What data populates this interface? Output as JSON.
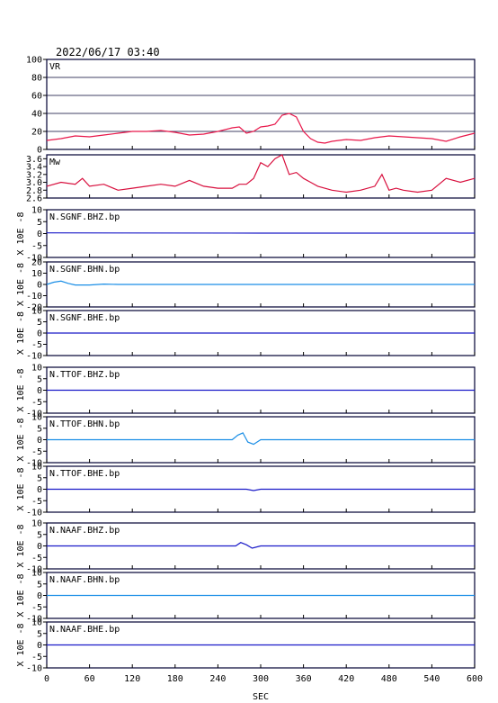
{
  "header": {
    "timestamp": "2022/06/17  03:40"
  },
  "colors": {
    "vr": "#e8174a",
    "mw": "#d8103e",
    "dark": "#1a1ac8",
    "light": "#1a8ee6",
    "frame": "#000033"
  },
  "chart_data": {
    "type": "line",
    "xlabel": "SEC",
    "xlim": [
      0,
      600
    ],
    "xticks": [
      "0",
      "60",
      "120",
      "180",
      "240",
      "300",
      "360",
      "420",
      "480",
      "540",
      "600"
    ],
    "panels": [
      {
        "key": "vr",
        "label": "VR",
        "ylabel": "",
        "ylim": [
          0,
          100
        ],
        "yticks": [
          "0",
          "20",
          "40",
          "60",
          "80",
          "100"
        ],
        "grid": true,
        "color": "vr",
        "x": [
          0,
          20,
          40,
          60,
          80,
          100,
          120,
          140,
          160,
          180,
          200,
          220,
          240,
          260,
          270,
          280,
          290,
          300,
          310,
          320,
          330,
          340,
          350,
          360,
          370,
          380,
          390,
          400,
          420,
          440,
          460,
          480,
          500,
          520,
          540,
          560,
          580,
          600
        ],
        "y": [
          10,
          12,
          15,
          14,
          16,
          18,
          20,
          20,
          21,
          19,
          16,
          17,
          20,
          24,
          25,
          18,
          20,
          25,
          26,
          28,
          38,
          40,
          36,
          20,
          12,
          8,
          7,
          9,
          11,
          10,
          13,
          15,
          14,
          13,
          12,
          9,
          14,
          18
        ]
      },
      {
        "key": "mw",
        "label": "Mw",
        "ylabel": "",
        "ylim": [
          2.6,
          3.7
        ],
        "yticks": [
          "2.6",
          "2.8",
          "3.0",
          "3.2",
          "3.4",
          "3.6"
        ],
        "grid": false,
        "color": "mw",
        "x": [
          0,
          20,
          40,
          50,
          60,
          80,
          100,
          120,
          140,
          160,
          180,
          200,
          220,
          240,
          260,
          270,
          280,
          290,
          300,
          310,
          320,
          330,
          340,
          350,
          360,
          370,
          380,
          400,
          420,
          440,
          460,
          470,
          480,
          490,
          500,
          520,
          540,
          560,
          580,
          600
        ],
        "y": [
          2.9,
          3.0,
          2.95,
          3.1,
          2.9,
          2.95,
          2.8,
          2.85,
          2.9,
          2.95,
          2.9,
          3.05,
          2.9,
          2.85,
          2.85,
          2.95,
          2.95,
          3.1,
          3.5,
          3.4,
          3.6,
          3.7,
          3.2,
          3.25,
          3.1,
          3.0,
          2.9,
          2.8,
          2.75,
          2.8,
          2.9,
          3.2,
          2.8,
          2.85,
          2.8,
          2.75,
          2.8,
          3.1,
          3.0,
          3.1
        ]
      },
      {
        "key": "sgnf_bhz",
        "label": "N.SGNF.BHZ.bp",
        "ylabel": "X 10E -8",
        "ylim": [
          -10,
          10
        ],
        "yticks": [
          "-10",
          "-5",
          "0",
          "5",
          "10"
        ],
        "grid": false,
        "color": "dark",
        "x": [
          0,
          300,
          600
        ],
        "y": [
          0.3,
          0.2,
          0.2
        ]
      },
      {
        "key": "sgnf_bhn",
        "label": "N.SGNF.BHN.bp",
        "ylabel": "X 10E -8",
        "ylim": [
          -20,
          20
        ],
        "yticks": [
          "-20",
          "-10",
          "0",
          "10",
          "20"
        ],
        "grid": false,
        "color": "light",
        "x": [
          0,
          10,
          20,
          30,
          40,
          60,
          80,
          100,
          600
        ],
        "y": [
          0,
          2,
          3,
          1,
          -0.5,
          -0.5,
          0.3,
          0,
          0
        ]
      },
      {
        "key": "sgnf_bhe",
        "label": "N.SGNF.BHE.bp",
        "ylabel": "X 10E -8",
        "ylim": [
          -10,
          10
        ],
        "yticks": [
          "-10",
          "-5",
          "0",
          "5",
          "10"
        ],
        "grid": false,
        "color": "dark",
        "x": [
          0,
          300,
          600
        ],
        "y": [
          0,
          0,
          0
        ]
      },
      {
        "key": "ttof_bhz",
        "label": "N.TTOF.BHZ.bp",
        "ylabel": "X 10E -8",
        "ylim": [
          -10,
          10
        ],
        "yticks": [
          "-10",
          "-5",
          "0",
          "5",
          "10"
        ],
        "grid": false,
        "color": "dark",
        "x": [
          0,
          300,
          600
        ],
        "y": [
          0,
          0,
          0
        ]
      },
      {
        "key": "ttof_bhn",
        "label": "N.TTOF.BHN.bp",
        "ylabel": "X 10E -8",
        "ylim": [
          -10,
          10
        ],
        "yticks": [
          "-10",
          "-5",
          "0",
          "5",
          "10"
        ],
        "grid": false,
        "color": "light",
        "x": [
          0,
          260,
          268,
          275,
          282,
          290,
          300,
          600
        ],
        "y": [
          0,
          0,
          2,
          3,
          -1,
          -2,
          0,
          0
        ]
      },
      {
        "key": "ttof_bhe",
        "label": "N.TTOF.BHE.bp",
        "ylabel": "X 10E -8",
        "ylim": [
          -10,
          10
        ],
        "yticks": [
          "-10",
          "-5",
          "0",
          "5",
          "10"
        ],
        "grid": false,
        "color": "dark",
        "x": [
          0,
          280,
          290,
          300,
          600
        ],
        "y": [
          0,
          0,
          -0.6,
          0,
          0
        ]
      },
      {
        "key": "naaf_bhz",
        "label": "N.NAAF.BHZ.bp",
        "ylabel": "X 10E -8",
        "ylim": [
          -10,
          10
        ],
        "yticks": [
          "-10",
          "-5",
          "0",
          "5",
          "10"
        ],
        "grid": false,
        "color": "dark",
        "x": [
          0,
          265,
          272,
          280,
          288,
          300,
          600
        ],
        "y": [
          0,
          0,
          1.5,
          0.5,
          -1,
          0,
          0
        ]
      },
      {
        "key": "naaf_bhn",
        "label": "N.NAAF.BHN.bp",
        "ylabel": "X 10E -8",
        "ylim": [
          -10,
          10
        ],
        "yticks": [
          "-10",
          "-5",
          "0",
          "5",
          "10"
        ],
        "grid": false,
        "color": "light",
        "x": [
          0,
          300,
          600
        ],
        "y": [
          0,
          0,
          0
        ]
      },
      {
        "key": "naaf_bhe",
        "label": "N.NAAF.BHE.bp",
        "ylabel": "X 10E -8",
        "ylim": [
          -10,
          10
        ],
        "yticks": [
          "-10",
          "-5",
          "0",
          "5",
          "10"
        ],
        "grid": false,
        "color": "dark",
        "x": [
          0,
          300,
          600
        ],
        "y": [
          0,
          0,
          0
        ]
      }
    ]
  }
}
